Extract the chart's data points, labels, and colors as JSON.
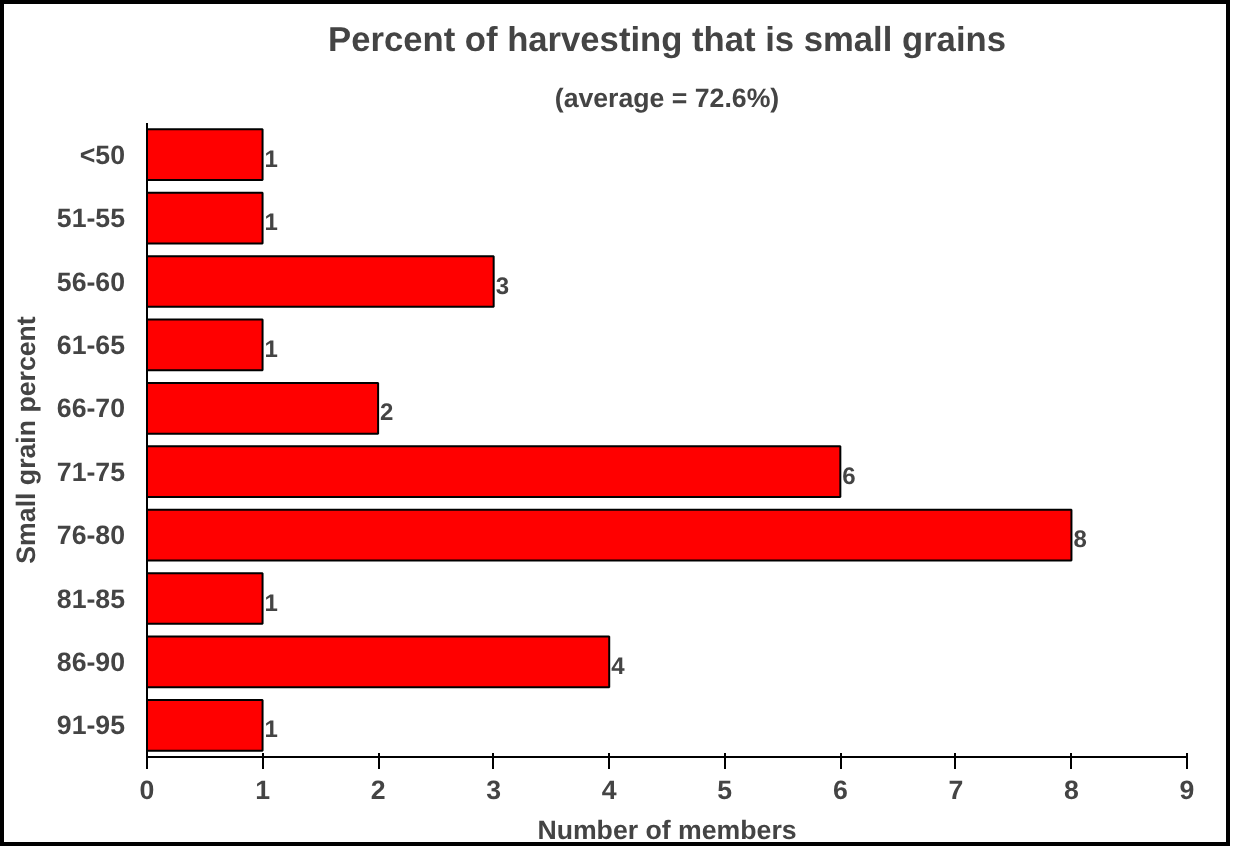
{
  "chart_data": {
    "type": "bar",
    "orientation": "horizontal",
    "title": "Percent of harvesting that is small grains",
    "subtitle": "(average = 72.6%)",
    "xlabel": "Number of members",
    "ylabel": "Small grain percent",
    "categories": [
      "<50",
      "51-55",
      "56-60",
      "61-65",
      "66-70",
      "71-75",
      "76-80",
      "81-85",
      "86-90",
      "91-95"
    ],
    "values": [
      1,
      1,
      3,
      1,
      2,
      6,
      8,
      1,
      4,
      1
    ],
    "color": "#ff0000",
    "xlim": [
      0,
      9
    ],
    "xticks": [
      0,
      1,
      2,
      3,
      4,
      5,
      6,
      7,
      8,
      9
    ],
    "grid": false,
    "data_labels": true
  }
}
